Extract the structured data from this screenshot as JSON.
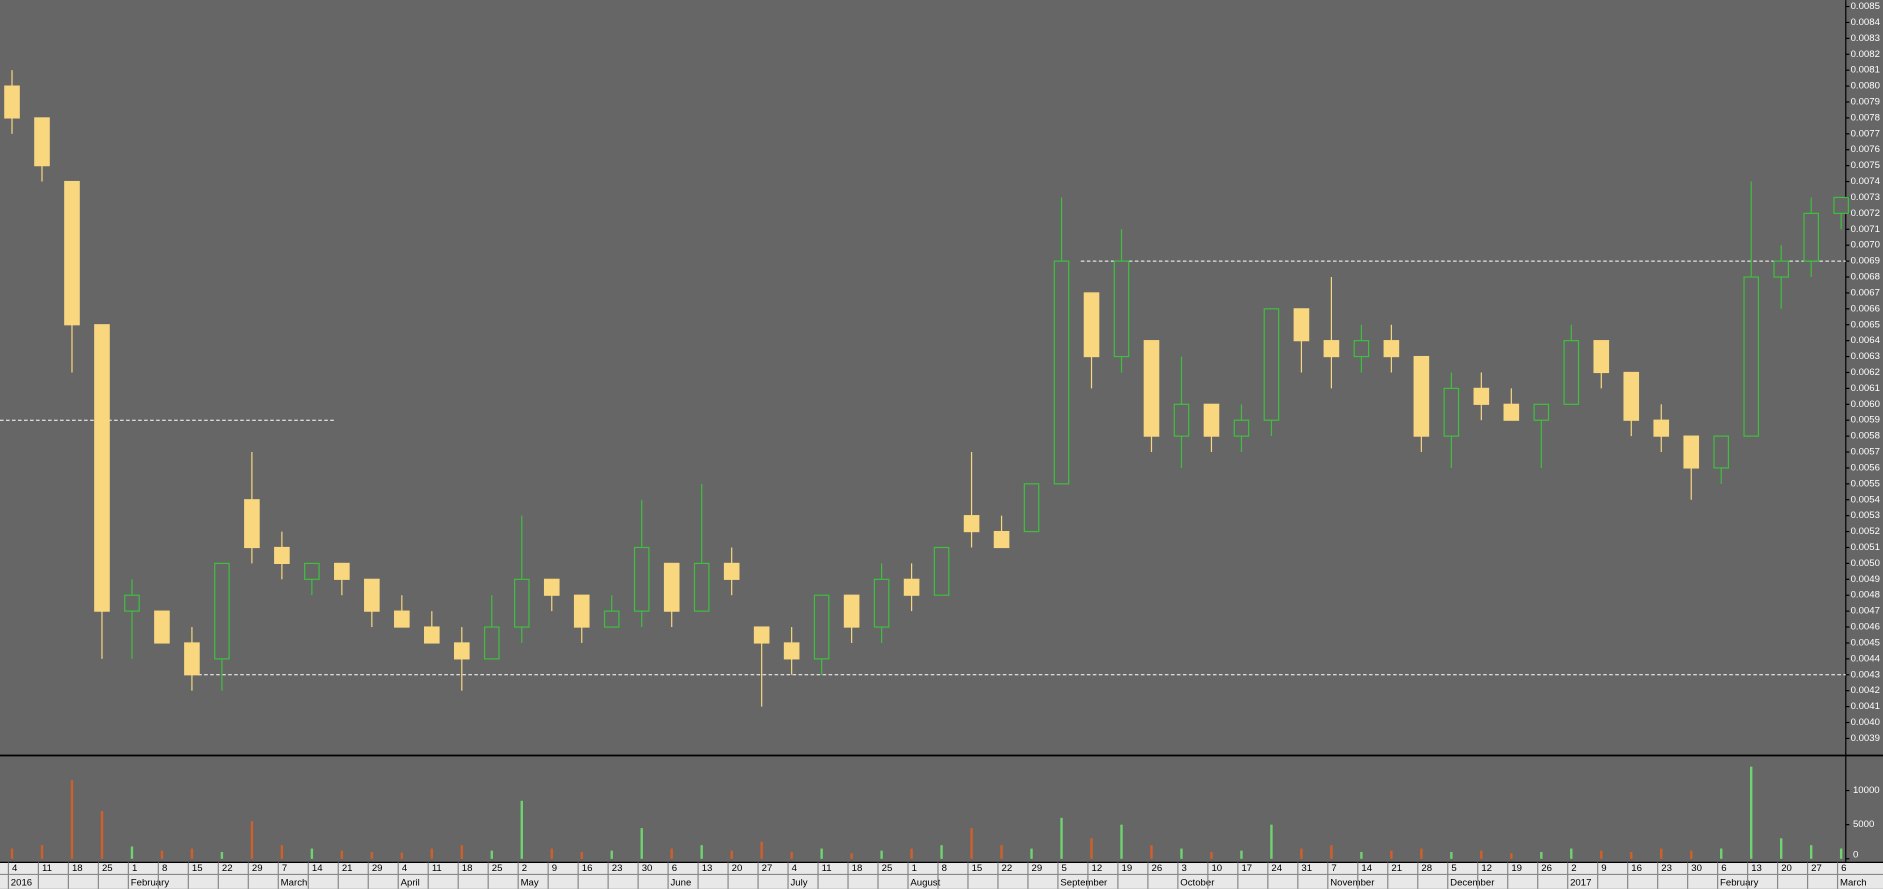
{
  "chart_data": {
    "type": "candlestick",
    "categories": [
      "4",
      "11",
      "18",
      "25",
      "1",
      "8",
      "15",
      "22",
      "29",
      "7",
      "14",
      "21",
      "29",
      "4",
      "11",
      "18",
      "25",
      "2",
      "9",
      "16",
      "23",
      "30",
      "6",
      "13",
      "20",
      "27",
      "4",
      "11",
      "18",
      "25",
      "1",
      "8",
      "15",
      "22",
      "29",
      "5",
      "12",
      "19",
      "26",
      "3",
      "10",
      "17",
      "24",
      "31",
      "7",
      "14",
      "21",
      "28",
      "5",
      "12",
      "19",
      "26",
      "2",
      "9",
      "16",
      "23",
      "30",
      "6",
      "13",
      "20",
      "27",
      "6"
    ],
    "months": [
      "2016",
      null,
      null,
      null,
      "February",
      null,
      null,
      null,
      null,
      "March",
      null,
      null,
      null,
      "April",
      null,
      null,
      null,
      "May",
      null,
      null,
      null,
      null,
      "June",
      null,
      null,
      null,
      "July",
      null,
      null,
      null,
      "August",
      null,
      null,
      null,
      null,
      "September",
      null,
      null,
      null,
      "October",
      null,
      null,
      null,
      null,
      "November",
      null,
      null,
      null,
      "December",
      null,
      null,
      null,
      "2017",
      null,
      null,
      null,
      null,
      "February",
      null,
      null,
      null,
      "March"
    ],
    "open": [
      0.008,
      0.0078,
      0.0074,
      0.0065,
      0.0047,
      0.0047,
      0.0045,
      0.0044,
      0.0054,
      0.0051,
      0.0049,
      0.005,
      0.0049,
      0.0047,
      0.0046,
      0.0045,
      0.0044,
      0.0046,
      0.0049,
      0.0048,
      0.0046,
      0.0047,
      0.005,
      0.0047,
      0.005,
      0.0046,
      0.0045,
      0.0044,
      0.0048,
      0.0046,
      0.0049,
      0.0048,
      0.0053,
      0.0052,
      0.0052,
      0.0055,
      0.0067,
      0.0063,
      0.0064,
      0.0058,
      0.006,
      0.0058,
      0.0059,
      0.0066,
      0.0064,
      0.0063,
      0.0064,
      0.0063,
      0.0058,
      0.0061,
      0.006,
      0.0059,
      0.006,
      0.0064,
      0.0062,
      0.0059,
      0.0058,
      0.0056,
      0.0058,
      0.0068,
      0.0069,
      0.0072
    ],
    "high": [
      0.0081,
      0.0078,
      0.0074,
      0.0065,
      0.0049,
      0.0047,
      0.0046,
      0.005,
      0.0057,
      0.0052,
      0.005,
      0.005,
      0.0049,
      0.0048,
      0.0047,
      0.0046,
      0.0048,
      0.0053,
      0.0049,
      0.0048,
      0.0048,
      0.0054,
      0.005,
      0.0055,
      0.0051,
      0.0046,
      0.0046,
      0.0048,
      0.0048,
      0.005,
      0.005,
      0.0051,
      0.0057,
      0.0053,
      0.0055,
      0.0073,
      0.0067,
      0.0071,
      0.0064,
      0.0063,
      0.006,
      0.006,
      0.0066,
      0.0066,
      0.0068,
      0.0065,
      0.0065,
      0.0063,
      0.0062,
      0.0062,
      0.0061,
      0.006,
      0.0065,
      0.0064,
      0.0062,
      0.006,
      0.0058,
      0.0058,
      0.0074,
      0.007,
      0.0073,
      0.0073
    ],
    "low": [
      0.0077,
      0.0074,
      0.0062,
      0.0044,
      0.0044,
      0.0045,
      0.0042,
      0.0042,
      0.005,
      0.0049,
      0.0048,
      0.0048,
      0.0046,
      0.0046,
      0.0045,
      0.0042,
      0.0044,
      0.0045,
      0.0047,
      0.0045,
      0.0046,
      0.0046,
      0.0046,
      0.0047,
      0.0048,
      0.0041,
      0.0043,
      0.0043,
      0.0045,
      0.0045,
      0.0047,
      0.0048,
      0.0051,
      0.0051,
      0.0052,
      0.0055,
      0.0061,
      0.0062,
      0.0057,
      0.0056,
      0.0057,
      0.0057,
      0.0058,
      0.0062,
      0.0061,
      0.0062,
      0.0062,
      0.0057,
      0.0056,
      0.0059,
      0.0059,
      0.0056,
      0.006,
      0.0061,
      0.0058,
      0.0057,
      0.0054,
      0.0055,
      0.0058,
      0.0066,
      0.0068,
      0.0071
    ],
    "close": [
      0.0078,
      0.0075,
      0.0065,
      0.0047,
      0.0048,
      0.0045,
      0.0043,
      0.005,
      0.0051,
      0.005,
      0.005,
      0.0049,
      0.0047,
      0.0046,
      0.0045,
      0.0044,
      0.0046,
      0.0049,
      0.0048,
      0.0046,
      0.0047,
      0.0051,
      0.0047,
      0.005,
      0.0049,
      0.0045,
      0.0044,
      0.0048,
      0.0046,
      0.0049,
      0.0048,
      0.0051,
      0.0052,
      0.0051,
      0.0055,
      0.0069,
      0.0063,
      0.0069,
      0.0058,
      0.006,
      0.0058,
      0.0059,
      0.0066,
      0.0064,
      0.0063,
      0.0064,
      0.0063,
      0.0058,
      0.0061,
      0.006,
      0.0059,
      0.006,
      0.0064,
      0.0062,
      0.0059,
      0.0058,
      0.0056,
      0.0058,
      0.0068,
      0.0069,
      0.0072,
      0.0073
    ],
    "volume": [
      1500,
      2000,
      11500,
      7000,
      1800,
      1200,
      1500,
      1000,
      5500,
      2000,
      1500,
      1200,
      1000,
      900,
      1500,
      2000,
      1200,
      8500,
      1500,
      1000,
      1200,
      4500,
      1500,
      2000,
      1200,
      2500,
      1000,
      1500,
      800,
      1200,
      1500,
      2000,
      4500,
      2000,
      1500,
      6000,
      3000,
      5000,
      2000,
      1500,
      1000,
      1200,
      5000,
      1500,
      2000,
      1000,
      1200,
      1500,
      1000,
      1200,
      800,
      1000,
      1500,
      1200,
      1000,
      1500,
      1200,
      1500,
      13500,
      3000,
      2000,
      1500
    ],
    "up_color": "#3ec03e",
    "down_color": "#f9d77e",
    "volume_up_color": "#6fd36f",
    "volume_down_color": "#d0602a",
    "reference_lines": [
      0.0059,
      0.0043,
      0.0069
    ],
    "ylim": [
      0.0038,
      0.00854
    ],
    "yticks": [
      0.0039,
      {
        "value": 0.004,
        "label": "0.0040"
      },
      0.0041,
      0.0042,
      0.0043,
      0.0044,
      0.0045,
      0.0046,
      0.0047,
      0.0048,
      0.0049,
      {
        "value": 0.005,
        "label": "0.0050"
      },
      0.0051,
      0.0052,
      0.0053,
      0.0054,
      0.0055,
      0.0056,
      0.0057,
      0.0058,
      0.0059,
      {
        "value": 0.006,
        "label": "0.0060"
      },
      0.0061,
      0.0062,
      0.0063,
      0.0064,
      0.0065,
      0.0066,
      0.0067,
      0.0068,
      0.0069,
      {
        "value": 0.007,
        "label": "0.0070"
      },
      0.0071,
      0.0072,
      0.0073,
      0.0074,
      0.0075,
      0.0076,
      0.0077,
      0.0078,
      0.0079,
      {
        "value": 0.008,
        "label": "0.0080"
      },
      0.0081,
      0.0082,
      0.0083,
      0.0084,
      0.0085
    ],
    "volume_ylim": [
      0,
      14600
    ],
    "volume_yticks": [
      0,
      5000,
      10000
    ]
  }
}
